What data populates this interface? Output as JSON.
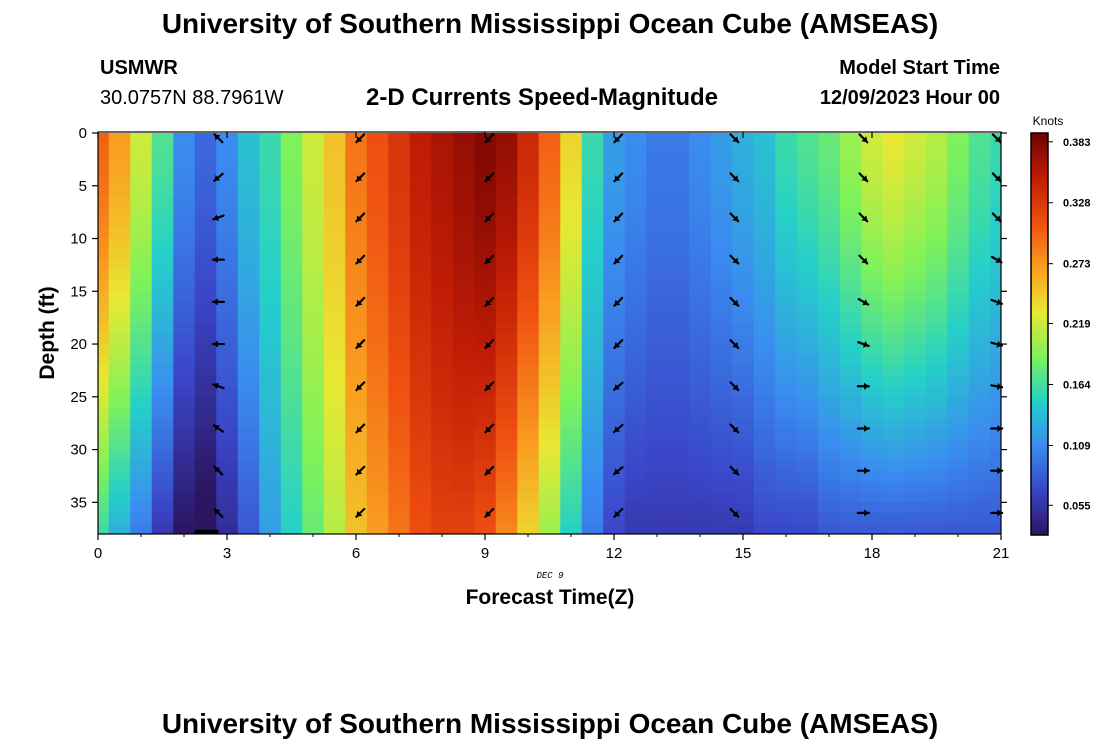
{
  "header": {
    "title": "University of Southern Mississippi Ocean Cube (AMSEAS)",
    "station_name": "USMWR",
    "station_coords": "30.0757N  88.7961W",
    "plot_subtitle": "2-D Currents Speed-Magnitude",
    "model_start_label": "Model Start Time",
    "model_start_value": "12/09/2023 Hour 00"
  },
  "footer": {
    "title": "University of Southern Mississippi Ocean Cube (AMSEAS)"
  },
  "chart_data": {
    "type": "heatmap",
    "title": "2-D Currents Speed-Magnitude",
    "xlabel": "Forecast Time(Z)",
    "ylabel": "Depth (ft)",
    "date_label": "DEC 9",
    "xlim": [
      0,
      21
    ],
    "ylim": [
      0,
      38
    ],
    "x_ticks": [
      0,
      3,
      6,
      9,
      12,
      15,
      18,
      21
    ],
    "y_ticks": [
      0,
      5,
      10,
      15,
      20,
      25,
      30,
      35
    ],
    "colorbar": {
      "unit": "Knots",
      "min": 0.03,
      "max": 0.39,
      "tick_values": [
        0.055,
        0.109,
        0.164,
        0.219,
        0.273,
        0.328,
        0.383
      ],
      "tick_labels": [
        "0.055",
        "0.109",
        "0.164",
        "0.219",
        "0.273",
        "0.328",
        "0.383"
      ],
      "colors": [
        "#2b1560",
        "#3a45c8",
        "#3a8cf0",
        "#25d0c8",
        "#7ef25a",
        "#e8e832",
        "#fa9d20",
        "#ef4e10",
        "#bf1c05",
        "#6e0202"
      ]
    },
    "time_hours": [
      0.0,
      0.5,
      1.0,
      1.5,
      2.0,
      2.5,
      3.0,
      3.5,
      4.0,
      4.5,
      5.0,
      5.5,
      6.0,
      6.5,
      7.0,
      7.5,
      8.0,
      8.5,
      9.0,
      9.5,
      10.0,
      10.5,
      11.0,
      11.5,
      12.0,
      12.5,
      13.0,
      13.5,
      14.0,
      14.5,
      15.0,
      15.5,
      16.0,
      16.5,
      17.0,
      17.5,
      18.0,
      18.5,
      19.0,
      19.5,
      20.0,
      20.5,
      21.0
    ],
    "speed_surface": [
      0.3,
      0.27,
      0.22,
      0.17,
      0.11,
      0.09,
      0.11,
      0.14,
      0.16,
      0.19,
      0.22,
      0.25,
      0.29,
      0.31,
      0.33,
      0.35,
      0.36,
      0.37,
      0.38,
      0.37,
      0.34,
      0.3,
      0.24,
      0.16,
      0.12,
      0.11,
      0.1,
      0.1,
      0.11,
      0.12,
      0.13,
      0.14,
      0.16,
      0.17,
      0.18,
      0.2,
      0.22,
      0.23,
      0.22,
      0.21,
      0.19,
      0.17,
      0.16
    ],
    "speed_bottom": [
      0.16,
      0.13,
      0.1,
      0.06,
      0.03,
      0.02,
      0.05,
      0.08,
      0.12,
      0.15,
      0.18,
      0.21,
      0.25,
      0.27,
      0.29,
      0.31,
      0.32,
      0.32,
      0.31,
      0.28,
      0.24,
      0.2,
      0.15,
      0.1,
      0.07,
      0.06,
      0.06,
      0.06,
      0.06,
      0.06,
      0.06,
      0.07,
      0.07,
      0.07,
      0.08,
      0.08,
      0.08,
      0.08,
      0.08,
      0.08,
      0.08,
      0.08,
      0.08
    ],
    "vector_times": [
      2.8,
      6.1,
      9.1,
      12.1,
      14.8,
      17.8,
      20.9
    ],
    "vector_depths": [
      0.5,
      4.2,
      8.0,
      12.0,
      16.0,
      20.0,
      24.0,
      28.0,
      32.0,
      36.0
    ],
    "vector_directions_deg": [
      [
        225,
        140,
        160,
        180,
        180,
        180,
        200,
        215,
        225,
        225
      ],
      [
        135,
        135,
        135,
        135,
        135,
        135,
        135,
        135,
        135,
        135
      ],
      [
        135,
        135,
        135,
        135,
        135,
        135,
        135,
        135,
        135,
        135
      ],
      [
        135,
        135,
        135,
        135,
        135,
        135,
        140,
        140,
        140,
        135
      ],
      [
        45,
        45,
        45,
        45,
        45,
        45,
        45,
        45,
        45,
        45
      ],
      [
        45,
        45,
        45,
        45,
        30,
        20,
        0,
        0,
        0,
        0
      ],
      [
        45,
        45,
        45,
        30,
        20,
        15,
        10,
        0,
        0,
        0
      ]
    ]
  }
}
